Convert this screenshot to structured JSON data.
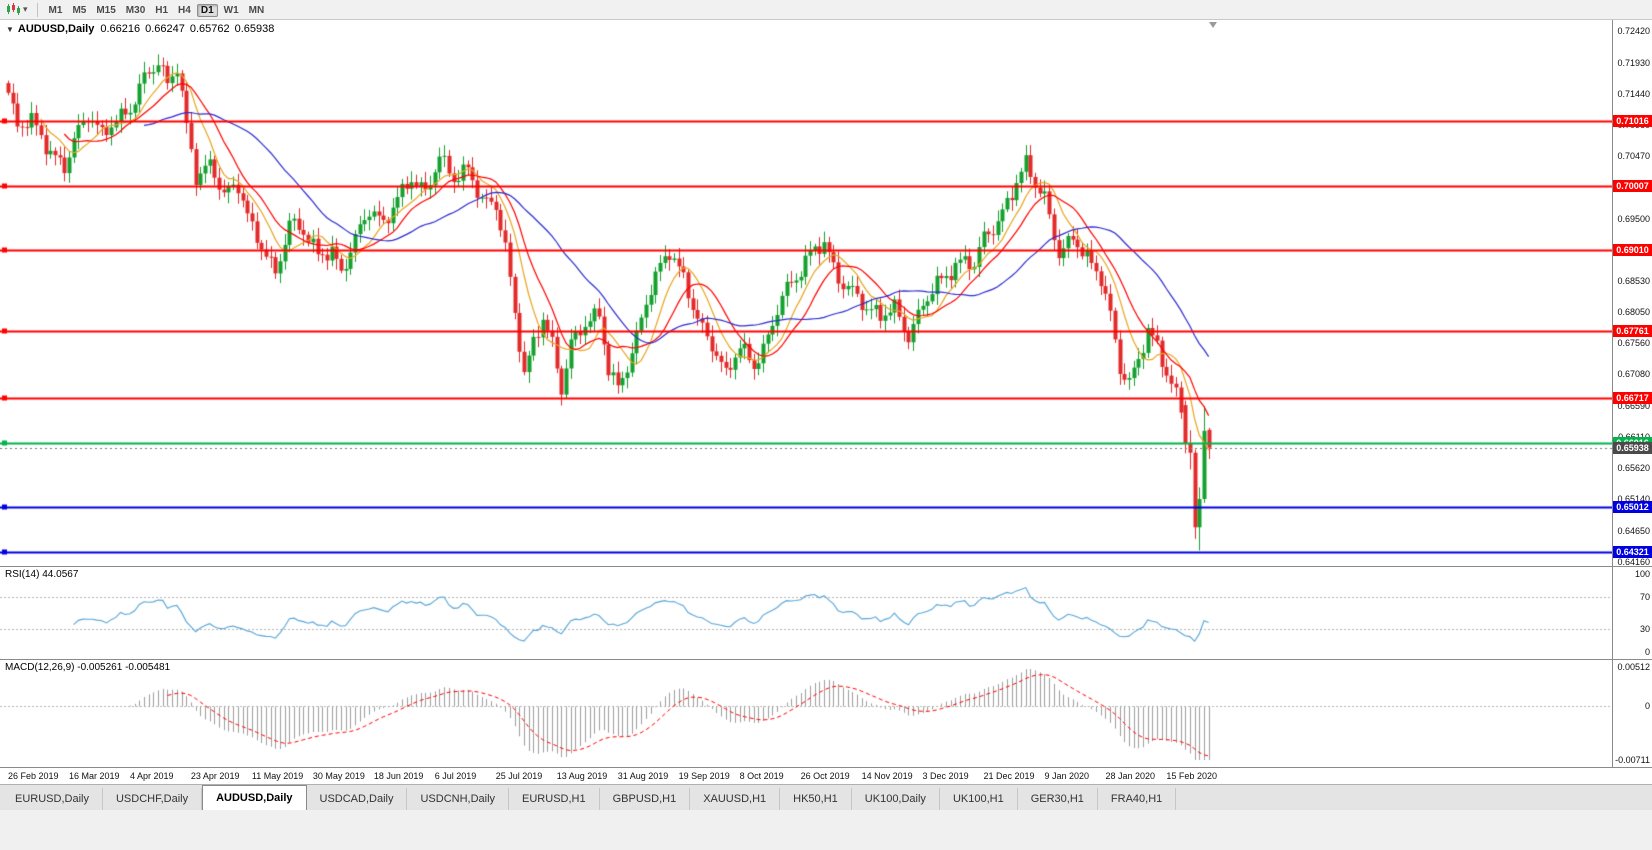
{
  "toolbar": {
    "chart_type_icon": "candlestick-chart",
    "timeframes": [
      {
        "label": "M1",
        "active": false
      },
      {
        "label": "M5",
        "active": false
      },
      {
        "label": "M15",
        "active": false
      },
      {
        "label": "M30",
        "active": false
      },
      {
        "label": "H1",
        "active": false
      },
      {
        "label": "H4",
        "active": false
      },
      {
        "label": "D1",
        "active": true
      },
      {
        "label": "W1",
        "active": false
      },
      {
        "label": "MN",
        "active": false
      }
    ]
  },
  "chart": {
    "title": "AUDUSD,Daily",
    "ohlc": {
      "open": "0.66216",
      "high": "0.66247",
      "low": "0.65762",
      "close": "0.65938"
    }
  },
  "chart_data": {
    "type": "candlestick",
    "symbol": "AUDUSD",
    "timeframe": "Daily",
    "num_candles": 257,
    "y_range": [
      0.6416,
      0.7242
    ],
    "y_ticks": [
      "0.72420",
      "0.71930",
      "0.71440",
      "0.70960",
      "0.70470",
      "0.69980",
      "0.69500",
      "0.69010",
      "0.68530",
      "0.68050",
      "0.67560",
      "0.67080",
      "0.66590",
      "0.66110",
      "0.65620",
      "0.65140",
      "0.64650",
      "0.64160"
    ],
    "close_waypoints": [
      [
        0,
        0.714
      ],
      [
        2,
        0.7085
      ],
      [
        5,
        0.7105
      ],
      [
        8,
        0.707
      ],
      [
        12,
        0.7032
      ],
      [
        14,
        0.707
      ],
      [
        17,
        0.7105
      ],
      [
        20,
        0.708
      ],
      [
        23,
        0.711
      ],
      [
        26,
        0.7125
      ],
      [
        29,
        0.7168
      ],
      [
        32,
        0.7185
      ],
      [
        34,
        0.7155
      ],
      [
        36,
        0.7188
      ],
      [
        38,
        0.71
      ],
      [
        40,
        0.7022
      ],
      [
        43,
        0.7036
      ],
      [
        46,
        0.6982
      ],
      [
        49,
        0.6996
      ],
      [
        52,
        0.6936
      ],
      [
        55,
        0.6902
      ],
      [
        57,
        0.6868
      ],
      [
        60,
        0.694
      ],
      [
        63,
        0.6924
      ],
      [
        66,
        0.6892
      ],
      [
        69,
        0.6906
      ],
      [
        71,
        0.6872
      ],
      [
        74,
        0.692
      ],
      [
        77,
        0.6958
      ],
      [
        80,
        0.6936
      ],
      [
        83,
        0.6986
      ],
      [
        86,
        0.702
      ],
      [
        89,
        0.6992
      ],
      [
        92,
        0.704
      ],
      [
        95,
        0.7006
      ],
      [
        98,
        0.703
      ],
      [
        101,
        0.6986
      ],
      [
        104,
        0.6974
      ],
      [
        106,
        0.6902
      ],
      [
        108,
        0.6796
      ],
      [
        110,
        0.6702
      ],
      [
        112,
        0.6756
      ],
      [
        114,
        0.68
      ],
      [
        116,
        0.6762
      ],
      [
        118,
        0.669
      ],
      [
        120,
        0.6756
      ],
      [
        123,
        0.678
      ],
      [
        126,
        0.6796
      ],
      [
        128,
        0.6716
      ],
      [
        130,
        0.6692
      ],
      [
        133,
        0.6746
      ],
      [
        136,
        0.682
      ],
      [
        139,
        0.687
      ],
      [
        141,
        0.6894
      ],
      [
        144,
        0.686
      ],
      [
        147,
        0.68
      ],
      [
        150,
        0.6756
      ],
      [
        153,
        0.6702
      ],
      [
        156,
        0.6746
      ],
      [
        159,
        0.6722
      ],
      [
        162,
        0.677
      ],
      [
        165,
        0.6836
      ],
      [
        168,
        0.6852
      ],
      [
        171,
        0.689
      ],
      [
        174,
        0.6914
      ],
      [
        177,
        0.6862
      ],
      [
        180,
        0.6842
      ],
      [
        183,
        0.6806
      ],
      [
        186,
        0.6792
      ],
      [
        189,
        0.6812
      ],
      [
        192,
        0.6772
      ],
      [
        195,
        0.6822
      ],
      [
        198,
        0.6846
      ],
      [
        201,
        0.686
      ],
      [
        204,
        0.6886
      ],
      [
        206,
        0.6882
      ],
      [
        208,
        0.693
      ],
      [
        211,
        0.6946
      ],
      [
        214,
        0.6986
      ],
      [
        217,
        0.703
      ],
      [
        219,
        0.7002
      ],
      [
        221,
        0.6986
      ],
      [
        224,
        0.6902
      ],
      [
        227,
        0.6922
      ],
      [
        230,
        0.6882
      ],
      [
        233,
        0.6852
      ],
      [
        235,
        0.68
      ],
      [
        237,
        0.6722
      ],
      [
        239,
        0.6702
      ],
      [
        241,
        0.6736
      ],
      [
        243,
        0.6776
      ],
      [
        245,
        0.6746
      ],
      [
        247,
        0.6702
      ],
      [
        249,
        0.6672
      ],
      [
        250,
        0.665
      ]
    ],
    "candle_overrides": {
      "251": [
        0.666,
        0.6667,
        0.6585,
        0.6601
      ],
      "252": [
        0.6601,
        0.6621,
        0.656,
        0.6586
      ],
      "253": [
        0.6586,
        0.6591,
        0.6452,
        0.647
      ],
      "254": [
        0.647,
        0.6532,
        0.6434,
        0.6514
      ],
      "255": [
        0.6514,
        0.6658,
        0.6508,
        0.662
      ],
      "256": [
        0.66216,
        0.66247,
        0.65762,
        0.65938
      ]
    },
    "candle_up_color": "#15a12f",
    "candle_down_color": "#e32b2b",
    "levels": [
      {
        "price": 0.71016,
        "label": "0.71016",
        "color": "#ff0000"
      },
      {
        "price": 0.70007,
        "label": "0.70007",
        "color": "#ff0000"
      },
      {
        "price": 0.6901,
        "label": "0.69010",
        "color": "#ff0000"
      },
      {
        "price": 0.67761,
        "label": "0.67761",
        "color": "#ff0000"
      },
      {
        "price": 0.66717,
        "label": "0.66717",
        "color": "#ff0000"
      },
      {
        "price": 0.66016,
        "label": "0.66016",
        "color": "#00b34a"
      },
      {
        "price": 0.65012,
        "label": "0.65012",
        "color": "#0000e0"
      },
      {
        "price": 0.64321,
        "label": "0.64321",
        "color": "#0000e0"
      }
    ],
    "current_price": {
      "value": "0.65938",
      "color": "#4a4a4a"
    },
    "moving_averages": [
      {
        "period": 8,
        "color": "#e8a520"
      },
      {
        "period": 13,
        "color": "#ff0000"
      },
      {
        "period": 30,
        "color": "#2c2cd0"
      }
    ],
    "x_labels": [
      [
        0,
        "26 Feb 2019"
      ],
      [
        13,
        "16 Mar 2019"
      ],
      [
        26,
        "4 Apr 2019"
      ],
      [
        39,
        "23 Apr 2019"
      ],
      [
        52,
        "11 May 2019"
      ],
      [
        65,
        "30 May 2019"
      ],
      [
        78,
        "18 Jun 2019"
      ],
      [
        91,
        "6 Jul 2019"
      ],
      [
        104,
        "25 Jul 2019"
      ],
      [
        117,
        "13 Aug 2019"
      ],
      [
        130,
        "31 Aug 2019"
      ],
      [
        143,
        "19 Sep 2019"
      ],
      [
        156,
        "8 Oct 2019"
      ],
      [
        169,
        "26 Oct 2019"
      ],
      [
        182,
        "14 Nov 2019"
      ],
      [
        195,
        "3 Dec 2019"
      ],
      [
        208,
        "21 Dec 2019"
      ],
      [
        221,
        "9 Jan 2020"
      ],
      [
        234,
        "28 Jan 2020"
      ],
      [
        247,
        "15 Feb 2020"
      ]
    ],
    "indicators": {
      "rsi": {
        "label": "RSI(14)",
        "value": "44.0567",
        "ticks": [
          100,
          70,
          30,
          0
        ],
        "guides": [
          70,
          30
        ],
        "range": [
          0,
          100
        ],
        "color": "#58a6d8"
      },
      "macd": {
        "label": "MACD(12,26,9)",
        "values": "-0.005261 -0.005481",
        "ticks": [
          "0.00512",
          "0",
          "-0.00711"
        ],
        "range": [
          -0.00711,
          0.00512
        ],
        "hist_color": "#9e9e9e",
        "signal_color": "#ff0000"
      }
    }
  },
  "tabs": [
    {
      "label": "EURUSD,Daily",
      "active": false
    },
    {
      "label": "USDCHF,Daily",
      "active": false
    },
    {
      "label": "AUDUSD,Daily",
      "active": true
    },
    {
      "label": "USDCAD,Daily",
      "active": false
    },
    {
      "label": "USDCNH,Daily",
      "active": false
    },
    {
      "label": "EURUSD,H1",
      "active": false
    },
    {
      "label": "GBPUSD,H1",
      "active": false
    },
    {
      "label": "XAUUSD,H1",
      "active": false
    },
    {
      "label": "HK50,H1",
      "active": false
    },
    {
      "label": "UK100,Daily",
      "active": false
    },
    {
      "label": "UK100,H1",
      "active": false
    },
    {
      "label": "GER30,H1",
      "active": false
    },
    {
      "label": "FRA40,H1",
      "active": false
    }
  ]
}
